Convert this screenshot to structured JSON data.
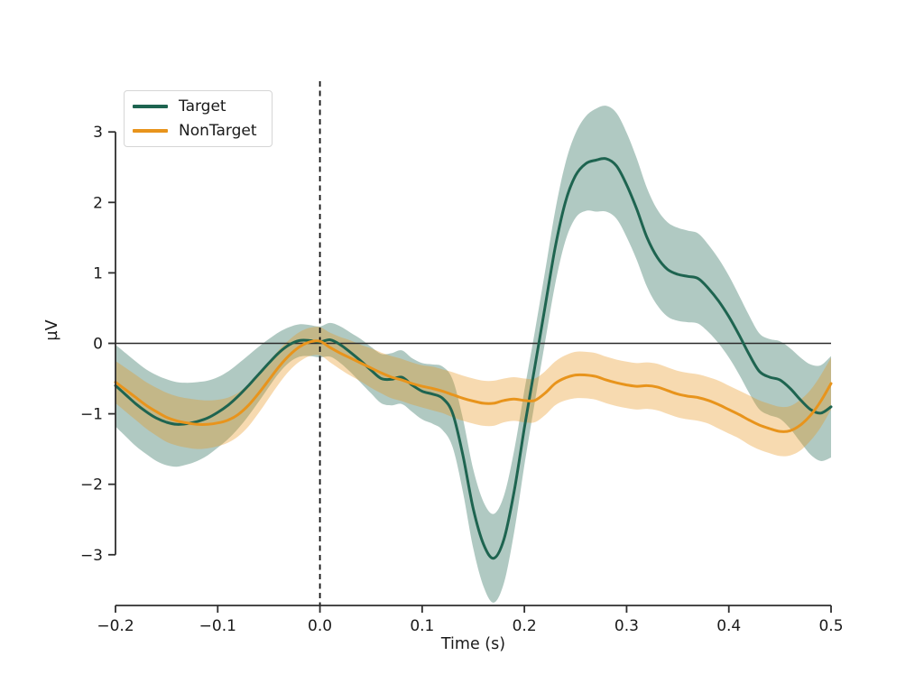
{
  "figure": {
    "xlabel": "Time (s)",
    "ylabel": "µV",
    "background": "#ffffff",
    "legend": {
      "position": "upper left",
      "items": [
        {
          "label": "Target",
          "color": "#1e6450"
        },
        {
          "label": "NonTarget",
          "color": "#e8941c"
        }
      ]
    }
  },
  "chart_data": {
    "type": "line",
    "title": "",
    "xlabel": "Time (s)",
    "ylabel": "µV",
    "xlim": [
      -0.2,
      0.5
    ],
    "ylim": [
      -3.72,
      3.72
    ],
    "grid": false,
    "legend_position": "upper left",
    "xticks": [
      -0.2,
      -0.1,
      0.0,
      0.1,
      0.2,
      0.3,
      0.4,
      0.5
    ],
    "xtick_labels": [
      "−0.2",
      "−0.1",
      "0.0",
      "0.1",
      "0.2",
      "0.3",
      "0.4",
      "0.5"
    ],
    "yticks": [
      -3,
      -2,
      -1,
      0,
      1,
      2,
      3
    ],
    "ytick_labels": [
      "−3",
      "−2",
      "−1",
      "0",
      "1",
      "2",
      "3"
    ],
    "reference_lines": {
      "vline": {
        "x": 0,
        "style": "dashed",
        "color": "#111111"
      },
      "hline": {
        "y": 0,
        "style": "solid",
        "color": "#2b2b2b"
      }
    },
    "x": [
      -0.2,
      -0.19,
      -0.18,
      -0.17,
      -0.16,
      -0.15,
      -0.14,
      -0.13,
      -0.12,
      -0.11,
      -0.1,
      -0.09,
      -0.08,
      -0.07,
      -0.06,
      -0.05,
      -0.04,
      -0.03,
      -0.02,
      -0.01,
      0,
      0.01,
      0.02,
      0.03,
      0.04,
      0.05,
      0.06,
      0.07,
      0.08,
      0.09,
      0.1,
      0.11,
      0.12,
      0.13,
      0.14,
      0.15,
      0.16,
      0.17,
      0.18,
      0.19,
      0.2,
      0.21,
      0.22,
      0.23,
      0.24,
      0.25,
      0.26,
      0.27,
      0.28,
      0.29,
      0.3,
      0.31,
      0.32,
      0.33,
      0.34,
      0.35,
      0.36,
      0.37,
      0.38,
      0.39,
      0.4,
      0.41,
      0.42,
      0.43,
      0.44,
      0.45,
      0.46,
      0.47,
      0.48,
      0.49,
      0.5
    ],
    "series": [
      {
        "name": "Target",
        "color": "#1e6450",
        "band_opacity": 0.35,
        "values": [
          -0.6,
          -0.73,
          -0.86,
          -0.97,
          -1.06,
          -1.12,
          -1.15,
          -1.14,
          -1.11,
          -1.06,
          -0.98,
          -0.88,
          -0.75,
          -0.6,
          -0.44,
          -0.28,
          -0.13,
          -0.02,
          0.04,
          0.04,
          0.02,
          0.05,
          -0.02,
          -0.13,
          -0.25,
          -0.38,
          -0.5,
          -0.51,
          -0.48,
          -0.59,
          -0.68,
          -0.72,
          -0.78,
          -1.0,
          -1.6,
          -2.35,
          -2.85,
          -3.05,
          -2.78,
          -2.1,
          -1.2,
          -0.35,
          0.5,
          1.35,
          2.0,
          2.38,
          2.55,
          2.6,
          2.62,
          2.52,
          2.25,
          1.9,
          1.5,
          1.22,
          1.05,
          0.98,
          0.95,
          0.92,
          0.78,
          0.6,
          0.38,
          0.12,
          -0.16,
          -0.4,
          -0.48,
          -0.52,
          -0.64,
          -0.8,
          -0.94,
          -0.99,
          -0.9
        ],
        "ci": [
          0.58,
          0.59,
          0.6,
          0.6,
          0.61,
          0.61,
          0.6,
          0.58,
          0.56,
          0.53,
          0.5,
          0.48,
          0.46,
          0.43,
          0.39,
          0.34,
          0.29,
          0.25,
          0.23,
          0.22,
          0.22,
          0.24,
          0.26,
          0.28,
          0.31,
          0.33,
          0.35,
          0.37,
          0.38,
          0.38,
          0.4,
          0.42,
          0.45,
          0.48,
          0.52,
          0.56,
          0.6,
          0.63,
          0.62,
          0.58,
          0.53,
          0.5,
          0.5,
          0.52,
          0.55,
          0.6,
          0.67,
          0.73,
          0.75,
          0.75,
          0.74,
          0.72,
          0.7,
          0.68,
          0.67,
          0.66,
          0.65,
          0.64,
          0.62,
          0.6,
          0.58,
          0.56,
          0.55,
          0.54,
          0.54,
          0.55,
          0.57,
          0.6,
          0.64,
          0.68,
          0.72
        ]
      },
      {
        "name": "NonTarget",
        "color": "#e8941c",
        "band_opacity": 0.35,
        "values": [
          -0.55,
          -0.66,
          -0.77,
          -0.88,
          -0.97,
          -1.05,
          -1.1,
          -1.13,
          -1.15,
          -1.15,
          -1.13,
          -1.09,
          -1.01,
          -0.88,
          -0.71,
          -0.52,
          -0.33,
          -0.17,
          -0.05,
          0.02,
          0.03,
          -0.06,
          -0.14,
          -0.21,
          -0.28,
          -0.35,
          -0.42,
          -0.48,
          -0.52,
          -0.57,
          -0.61,
          -0.64,
          -0.68,
          -0.73,
          -0.78,
          -0.82,
          -0.85,
          -0.85,
          -0.81,
          -0.79,
          -0.81,
          -0.81,
          -0.71,
          -0.57,
          -0.49,
          -0.45,
          -0.45,
          -0.47,
          -0.52,
          -0.56,
          -0.59,
          -0.61,
          -0.6,
          -0.62,
          -0.67,
          -0.72,
          -0.75,
          -0.77,
          -0.81,
          -0.87,
          -0.94,
          -1.01,
          -1.09,
          -1.16,
          -1.21,
          -1.25,
          -1.24,
          -1.16,
          -1.02,
          -0.82,
          -0.57
        ],
        "ci": [
          0.3,
          0.31,
          0.32,
          0.33,
          0.34,
          0.35,
          0.35,
          0.35,
          0.35,
          0.34,
          0.33,
          0.32,
          0.31,
          0.3,
          0.28,
          0.26,
          0.24,
          0.22,
          0.21,
          0.2,
          0.2,
          0.21,
          0.23,
          0.25,
          0.26,
          0.28,
          0.29,
          0.3,
          0.3,
          0.3,
          0.3,
          0.31,
          0.31,
          0.32,
          0.32,
          0.32,
          0.32,
          0.32,
          0.31,
          0.31,
          0.31,
          0.31,
          0.31,
          0.31,
          0.32,
          0.33,
          0.33,
          0.33,
          0.33,
          0.33,
          0.33,
          0.33,
          0.33,
          0.33,
          0.33,
          0.33,
          0.33,
          0.33,
          0.33,
          0.34,
          0.34,
          0.34,
          0.35,
          0.35,
          0.35,
          0.35,
          0.35,
          0.36,
          0.36,
          0.37,
          0.37
        ]
      }
    ]
  }
}
